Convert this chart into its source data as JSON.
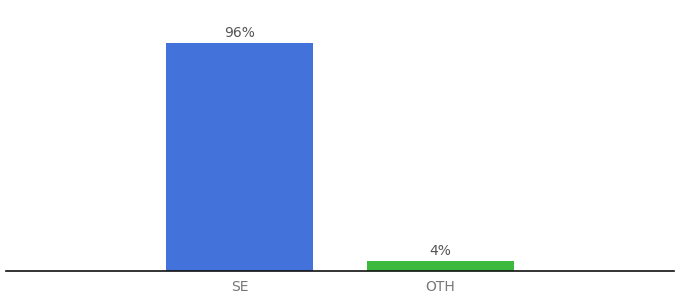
{
  "categories": [
    "SE",
    "OTH"
  ],
  "values": [
    96,
    4
  ],
  "bar_colors": [
    "#4472db",
    "#3dba3d"
  ],
  "label_texts": [
    "96%",
    "4%"
  ],
  "background_color": "#ffffff",
  "ylim": [
    0,
    112
  ],
  "xlim": [
    0,
    1
  ],
  "bar_positions": [
    0.35,
    0.65
  ],
  "bar_width": 0.22,
  "label_fontsize": 10,
  "tick_fontsize": 10,
  "tick_color": "#777777",
  "axis_line_color": "#111111",
  "figsize": [
    6.8,
    3.0
  ],
  "dpi": 100
}
